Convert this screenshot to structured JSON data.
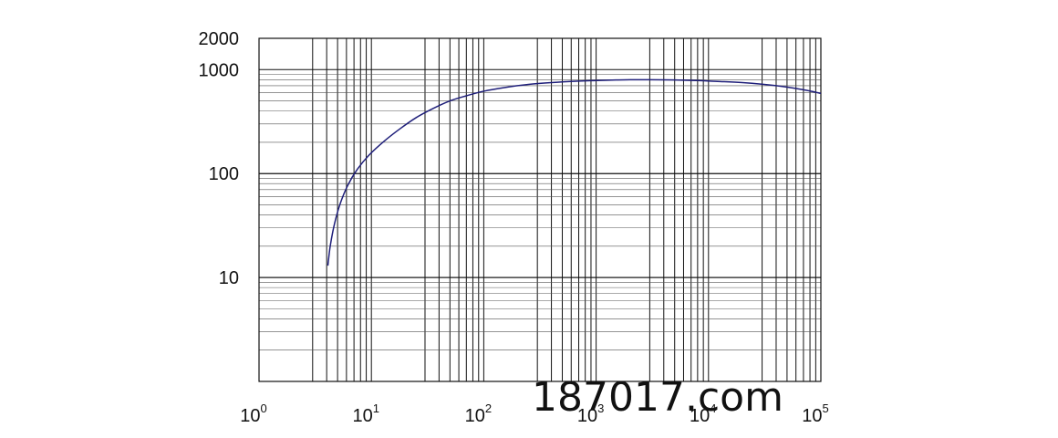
{
  "watermark": "187017.com",
  "chart_data": {
    "type": "line",
    "title": "",
    "xlabel": "",
    "ylabel": "",
    "x_scale": "log",
    "y_scale": "log",
    "xlim": [
      1,
      100000
    ],
    "ylim": [
      1,
      2000
    ],
    "grid": true,
    "x_tick_labels": [
      {
        "value": 1,
        "base": "10",
        "exp": "0"
      },
      {
        "value": 10,
        "base": "10",
        "exp": "1"
      },
      {
        "value": 100,
        "base": "10",
        "exp": "2"
      },
      {
        "value": 1000,
        "base": "10",
        "exp": "3"
      },
      {
        "value": 10000,
        "base": "10",
        "exp": "4"
      },
      {
        "value": 100000,
        "base": "10",
        "exp": "5"
      }
    ],
    "y_tick_labels": [
      {
        "value": 2000,
        "label": "2000"
      },
      {
        "value": 1000,
        "label": "1000"
      },
      {
        "value": 100,
        "label": "100"
      },
      {
        "value": 10,
        "label": "10"
      }
    ],
    "colors": {
      "line": "#1f1f7a",
      "grid": "#111111"
    },
    "series": [
      {
        "x": [
          4.1,
          4.3,
          4.7,
          5.3,
          6.2,
          7.5,
          9.5,
          13,
          18,
          25,
          35,
          50,
          70,
          100,
          150,
          250,
          400,
          700,
          1000,
          1500,
          2000,
          3000,
          5000,
          8000,
          12000,
          20000,
          40000,
          70000,
          100000
        ],
        "y": [
          13,
          20,
          33,
          52,
          78,
          110,
          150,
          205,
          270,
          345,
          420,
          500,
          560,
          620,
          670,
          720,
          750,
          775,
          785,
          795,
          800,
          800,
          795,
          785,
          770,
          750,
          700,
          640,
          590
        ]
      }
    ]
  }
}
